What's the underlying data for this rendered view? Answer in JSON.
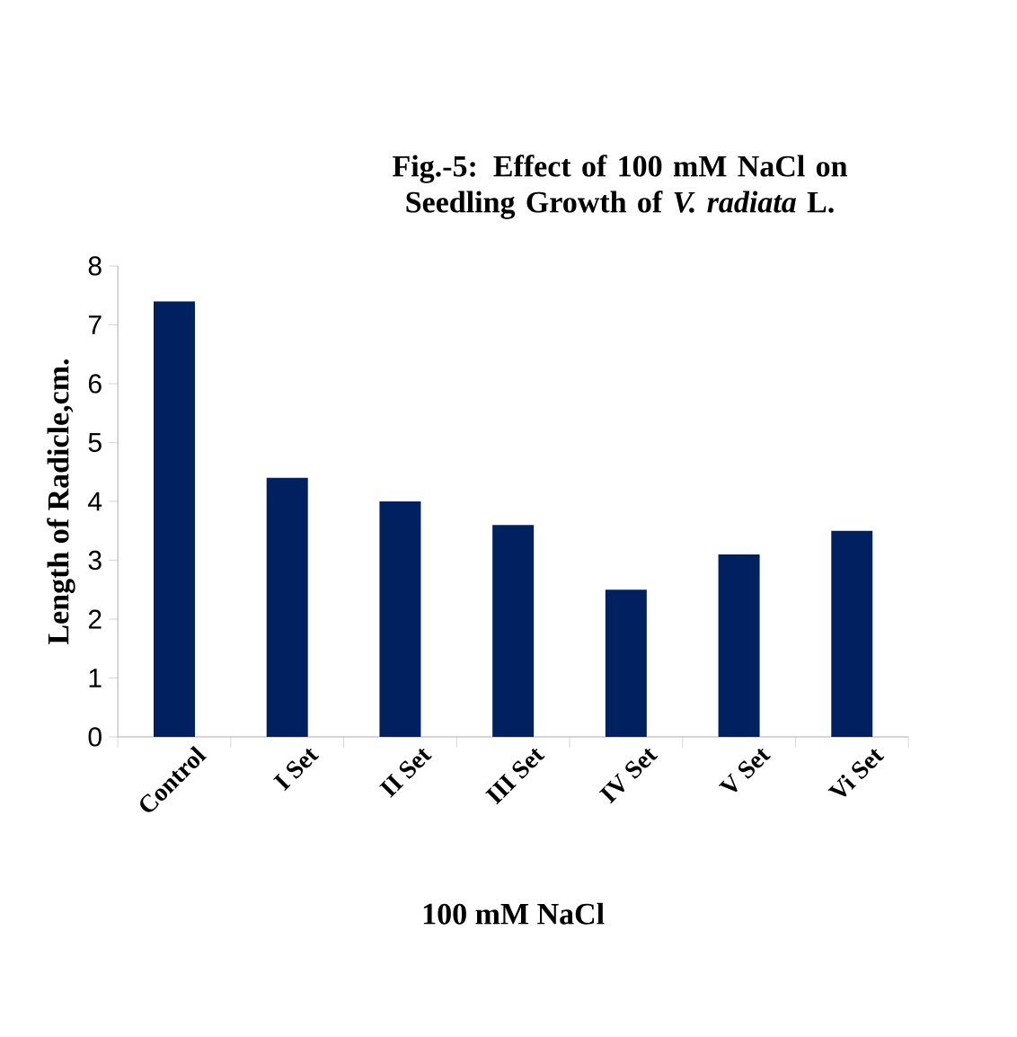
{
  "chart_data": {
    "type": "bar",
    "title": "Fig.-5: Effect of 100 mM NaCl on Seedling Growth of *V. radiata* L.",
    "xlabel": "100 mM NaCl",
    "ylabel": "Length of Radicle,cm.",
    "categories": [
      "Control",
      "I Set",
      "II Set",
      "III Set",
      "IV Set",
      "V Set",
      "Vi Set"
    ],
    "values": [
      7.4,
      4.4,
      4.0,
      3.6,
      2.5,
      3.1,
      3.5
    ],
    "color": "#002060",
    "ylim": [
      0,
      8
    ],
    "yticks": [
      0,
      1,
      2,
      3,
      4,
      5,
      6,
      7,
      8
    ],
    "grid": false
  }
}
